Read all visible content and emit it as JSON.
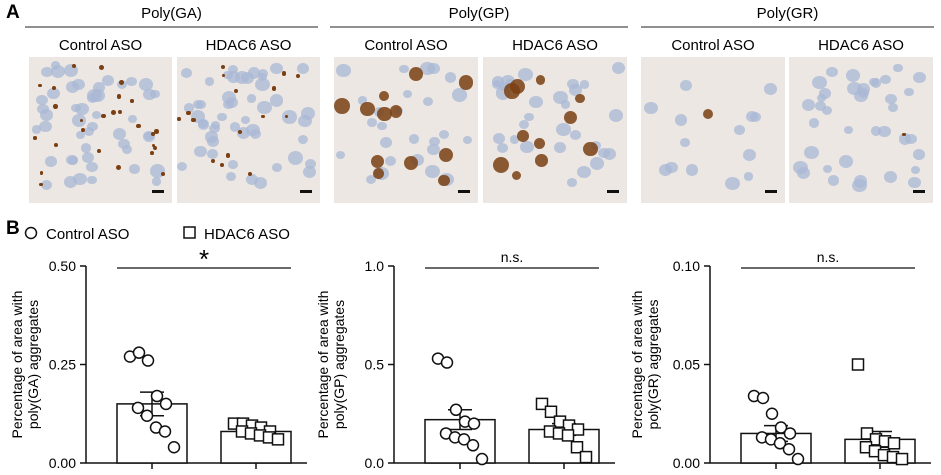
{
  "panels": {
    "a_label": "A",
    "b_label": "B"
  },
  "micrograph_groups": [
    {
      "title": "Poly(GA)",
      "conditions": [
        "Control ASO",
        "HDAC6 ASO"
      ]
    },
    {
      "title": "Poly(GP)",
      "conditions": [
        "Control ASO",
        "HDAC6 ASO"
      ]
    },
    {
      "title": "Poly(GR)",
      "conditions": [
        "Control ASO",
        "HDAC6 ASO"
      ]
    }
  ],
  "legend": {
    "control": "Control ASO",
    "hdac6": "HDAC6 ASO"
  },
  "colors": {
    "stain_background": "#ece7e3",
    "nucleus": "#a9b8d6",
    "dab_brown": "#7a3f12",
    "markers": "#111111"
  },
  "chart_data": [
    {
      "type": "bar",
      "categories": [
        "Control ASO",
        "HDAC6 ASO"
      ],
      "ylabel": "Percentage of area with poly(GA) aggregates",
      "ylabel_lines": [
        "Percentage of area with",
        "poly(GA) aggregates"
      ],
      "ylim": [
        0,
        0.5
      ],
      "yticks": [
        "0.00",
        "0.25",
        "0.50"
      ],
      "significance": "*",
      "bars": [
        {
          "mean": 0.15,
          "sem": 0.03
        },
        {
          "mean": 0.08,
          "sem": 0.008
        }
      ],
      "points": [
        [
          0.27,
          0.28,
          0.26,
          0.17,
          0.15,
          0.14,
          0.12,
          0.09,
          0.08,
          0.04
        ],
        [
          0.1,
          0.1,
          0.095,
          0.09,
          0.08,
          0.08,
          0.075,
          0.07,
          0.065,
          0.06
        ]
      ]
    },
    {
      "type": "bar",
      "categories": [
        "Control ASO",
        "HDAC6 ASO"
      ],
      "ylabel": "Percentage of area with poly(GP) aggregates",
      "ylabel_lines": [
        "Percentage of area with",
        "poly(GP) aggregates"
      ],
      "ylim": [
        0,
        1.0
      ],
      "yticks": [
        "0.0",
        "0.5",
        "1.0"
      ],
      "significance": "n.s.",
      "bars": [
        {
          "mean": 0.22,
          "sem": 0.05
        },
        {
          "mean": 0.17,
          "sem": 0.03
        }
      ],
      "points": [
        [
          0.53,
          0.51,
          0.27,
          0.21,
          0.2,
          0.15,
          0.13,
          0.12,
          0.09,
          0.02
        ],
        [
          0.3,
          0.26,
          0.21,
          0.19,
          0.17,
          0.16,
          0.15,
          0.14,
          0.08,
          0.03
        ]
      ]
    },
    {
      "type": "bar",
      "categories": [
        "Control ASO",
        "HDAC6 ASO"
      ],
      "ylabel": "Percentage of area with poly(GR) aggregates",
      "ylabel_lines": [
        "Percentage of area with",
        "poly(GR) aggregates"
      ],
      "ylim": [
        0,
        0.1
      ],
      "yticks": [
        "0.00",
        "0.05",
        "0.10"
      ],
      "significance": "n.s.",
      "bars": [
        {
          "mean": 0.015,
          "sem": 0.004
        },
        {
          "mean": 0.012,
          "sem": 0.004
        }
      ],
      "points": [
        [
          0.034,
          0.033,
          0.025,
          0.018,
          0.015,
          0.013,
          0.012,
          0.01,
          0.007,
          0.002
        ],
        [
          0.05,
          0.015,
          0.012,
          0.011,
          0.01,
          0.008,
          0.006,
          0.004,
          0.003,
          0.002
        ]
      ]
    }
  ]
}
